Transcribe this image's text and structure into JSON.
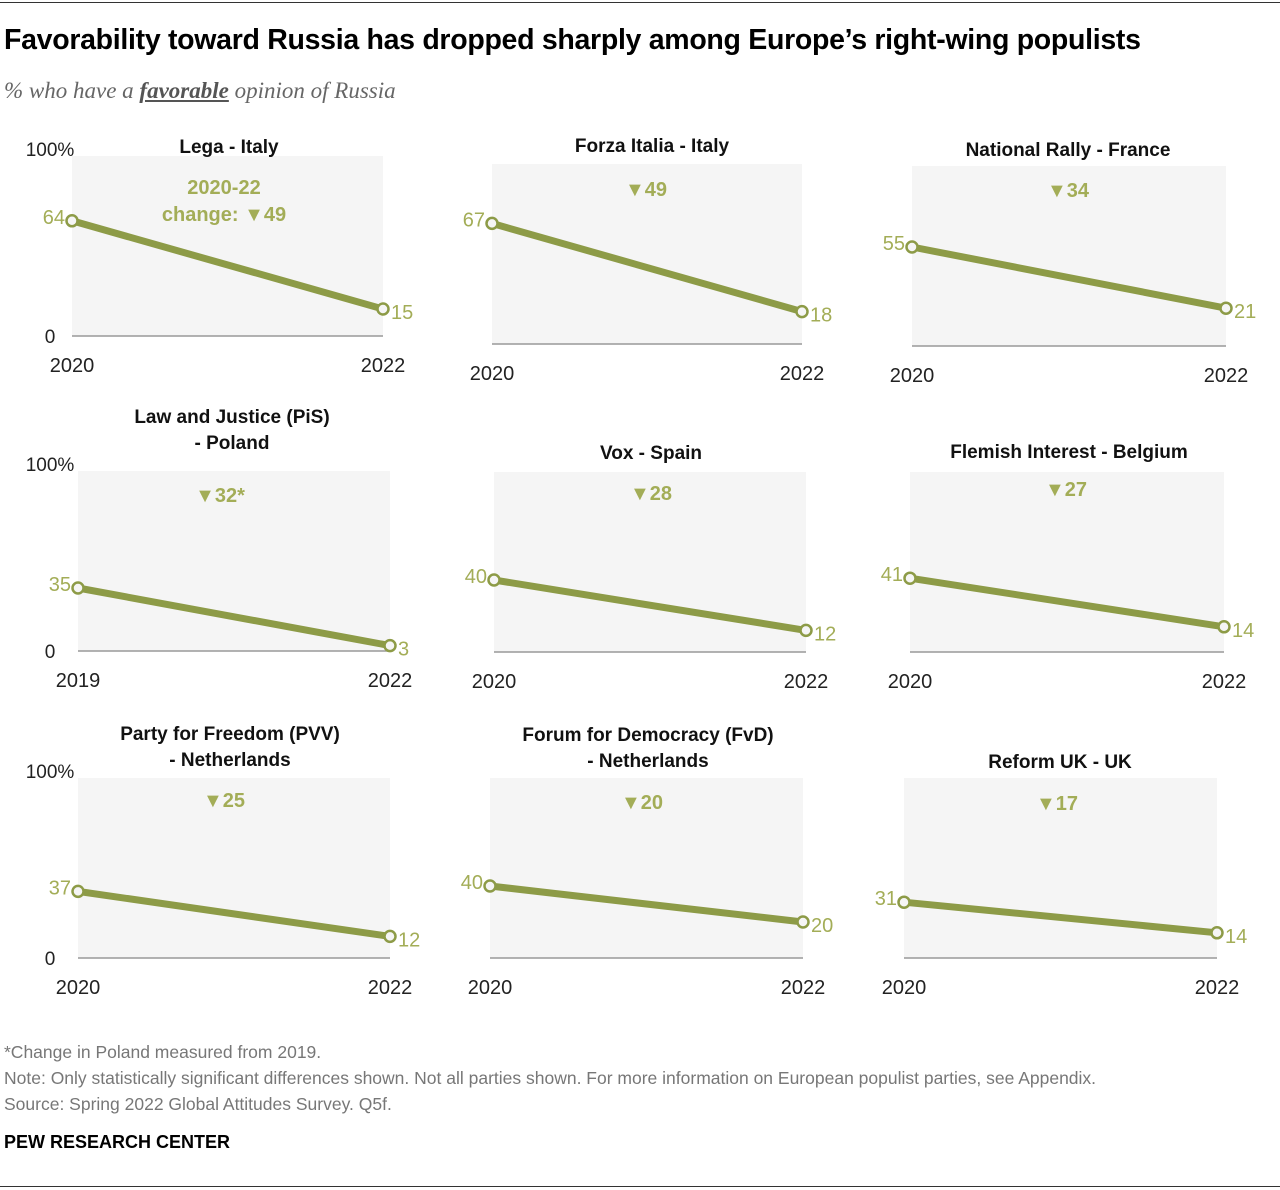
{
  "title": "Favorability toward Russia has dropped sharply among Europe’s right-wing populists",
  "subtitle": {
    "before": "% who have a ",
    "emphasis": "favorable",
    "after": " opinion of Russia"
  },
  "footnotes": [
    "*Change in Poland measured from 2019.",
    "Note: Only statistically significant differences shown. Not all parties shown. For more information on European populist parties, see Appendix.",
    "Source: Spring 2022 Global Attitudes Survey. Q5f."
  ],
  "brand": "PEW RESEARCH CENTER",
  "colors": {
    "line": "#8d9b47",
    "label": "#a3ad57",
    "plot_bg": "#f5f5f5",
    "axis": "#999999"
  },
  "chart_data": {
    "type": "line",
    "ylim": [
      0,
      100
    ],
    "y_tick_labels": [
      "100%",
      "0"
    ],
    "grid": false,
    "panels": [
      {
        "title": [
          "Lega - Italy"
        ],
        "x": [
          "2020",
          "2022"
        ],
        "values": [
          64,
          15
        ],
        "change_label": [
          "2020-22",
          "change: ▼49"
        ]
      },
      {
        "title": [
          "Forza Italia - Italy"
        ],
        "x": [
          "2020",
          "2022"
        ],
        "values": [
          67,
          18
        ],
        "change_label": [
          "▼49"
        ]
      },
      {
        "title": [
          "National Rally - France"
        ],
        "x": [
          "2020",
          "2022"
        ],
        "values": [
          55,
          21
        ],
        "change_label": [
          "▼34"
        ]
      },
      {
        "title": [
          "Law and Justice (PiS)",
          "- Poland"
        ],
        "x": [
          "2019",
          "2022"
        ],
        "values": [
          35,
          3
        ],
        "change_label": [
          "▼32*"
        ]
      },
      {
        "title": [
          "Vox - Spain"
        ],
        "x": [
          "2020",
          "2022"
        ],
        "values": [
          40,
          12
        ],
        "change_label": [
          "▼28"
        ]
      },
      {
        "title": [
          "Flemish Interest - Belgium"
        ],
        "x": [
          "2020",
          "2022"
        ],
        "values": [
          41,
          14
        ],
        "change_label": [
          "▼27"
        ]
      },
      {
        "title": [
          "Party for Freedom (PVV)",
          "- Netherlands"
        ],
        "x": [
          "2020",
          "2022"
        ],
        "values": [
          37,
          12
        ],
        "change_label": [
          "▼25"
        ]
      },
      {
        "title": [
          "Forum for Democracy (FvD)",
          "- Netherlands"
        ],
        "x": [
          "2020",
          "2022"
        ],
        "values": [
          40,
          20
        ],
        "change_label": [
          "▼20"
        ]
      },
      {
        "title": [
          "Reform UK - UK"
        ],
        "x": [
          "2020",
          "2022"
        ],
        "values": [
          31,
          14
        ],
        "change_label": [
          "▼17"
        ]
      }
    ]
  }
}
